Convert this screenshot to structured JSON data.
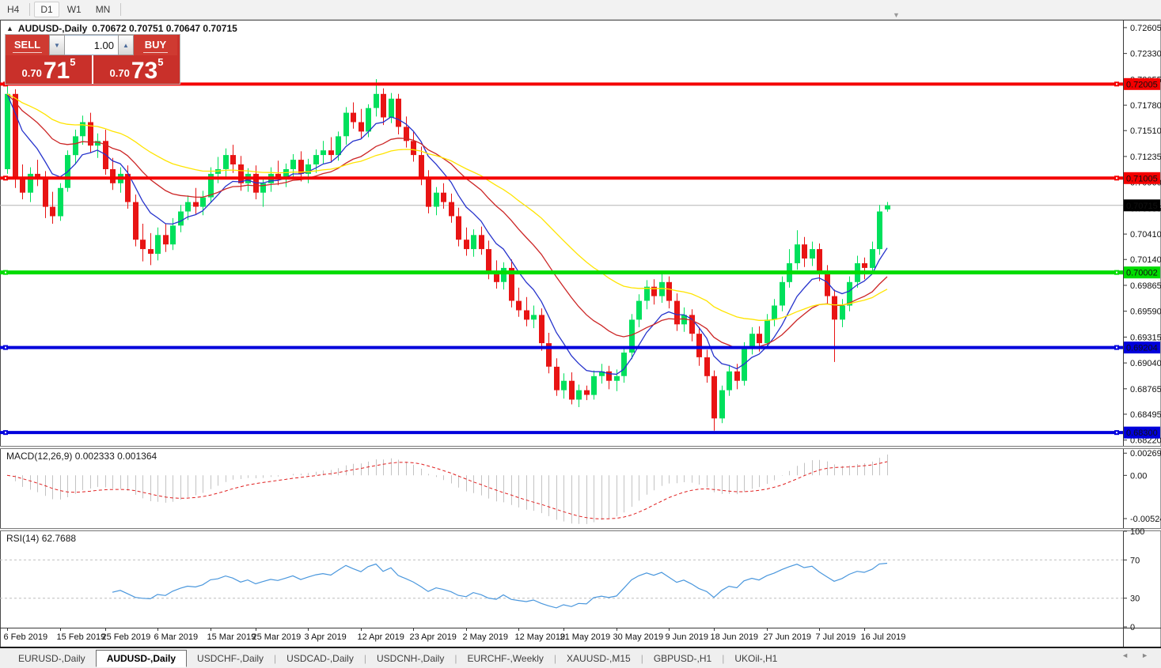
{
  "icons": {
    "overflow": "▼",
    "panel_toggle": "▲",
    "spin_up": "▲",
    "spin_down": "▼",
    "scroll_left": "◄",
    "scroll_right": "►"
  },
  "toolbar": {
    "timeframes": [
      {
        "label": "H4",
        "active": false
      },
      {
        "label": "D1",
        "active": true
      },
      {
        "label": "W1",
        "active": false
      },
      {
        "label": "MN",
        "active": false
      }
    ]
  },
  "chart_title": {
    "symbol": "AUDUSD-,Daily",
    "ohlc": "0.70672 0.70751 0.70647 0.70715"
  },
  "trade_panel": {
    "sell_label": "SELL",
    "buy_label": "BUY",
    "volume": "1.00",
    "sell_price": {
      "prefix": "0.70",
      "big": "71",
      "sup": "5"
    },
    "buy_price": {
      "prefix": "0.70",
      "big": "73",
      "sup": "5"
    }
  },
  "chart_data": {
    "type": "candlestick",
    "symbol": "AUDUSD",
    "timeframe": "Daily",
    "colors": {
      "candle_up": "#00e05c",
      "candle_down": "#e81414",
      "ma_fast": "#2633cc",
      "ma_mid": "#cc2626",
      "ma_slow": "#ffe400",
      "price_line": "#b4b4b4",
      "price_tag_bg": "#000000",
      "macd_hist": "#c3c3c3",
      "macd_signal": "#e01f1f",
      "rsi_line": "#4a97dd",
      "level_dash": "#bdbdbd"
    },
    "price_axis": {
      "range": {
        "min": 0.6815,
        "max": 0.7268
      },
      "ticks": [
        "0.72605",
        "0.72330",
        "0.72055",
        "0.71780",
        "0.71510",
        "0.71235",
        "0.70960",
        "0.70685",
        "0.70410",
        "0.70140",
        "0.69865",
        "0.69590",
        "0.69315",
        "0.69040",
        "0.68765",
        "0.68495",
        "0.68220"
      ]
    },
    "current_price": {
      "value": 0.70715,
      "label": "0.70715"
    },
    "hlines": [
      {
        "price": 0.72005,
        "label": "0.72005",
        "color": "#f40000",
        "text_color": "#ffffff",
        "thickness": 4
      },
      {
        "price": 0.71005,
        "label": "0.71005",
        "color": "#f40000",
        "text_color": "#ffffff",
        "thickness": 4
      },
      {
        "price": 0.70002,
        "label": "0.70002",
        "color": "#00dc00",
        "text_color": "#000000",
        "thickness": 5
      },
      {
        "price": 0.69204,
        "label": "0.69204",
        "color": "#0000dc",
        "text_color": "#ffffff",
        "thickness": 4
      },
      {
        "price": 0.683,
        "label": "0.68300",
        "color": "#0000dc",
        "text_color": "#ffffff",
        "thickness": 4
      }
    ],
    "moving_averages": [
      {
        "period": 8,
        "color": "#2633cc"
      },
      {
        "period": 20,
        "color": "#cc2626"
      },
      {
        "period": 40,
        "color": "#ffe400"
      }
    ],
    "price_scale_divisor": 100000,
    "candles": [
      [
        71100,
        72000,
        71050,
        71900
      ],
      [
        71900,
        71950,
        70900,
        71000
      ],
      [
        71000,
        71150,
        70780,
        70850
      ],
      [
        70850,
        71120,
        70750,
        71050
      ],
      [
        71050,
        71200,
        70920,
        71000
      ],
      [
        71000,
        71080,
        70580,
        70700
      ],
      [
        70700,
        70860,
        70520,
        70600
      ],
      [
        70600,
        70950,
        70550,
        70900
      ],
      [
        70900,
        71300,
        70860,
        71250
      ],
      [
        71250,
        71520,
        71150,
        71450
      ],
      [
        71450,
        71670,
        71360,
        71600
      ],
      [
        71600,
        71700,
        71280,
        71350
      ],
      [
        71350,
        71480,
        71220,
        71400
      ],
      [
        71400,
        71520,
        71040,
        71100
      ],
      [
        71100,
        71220,
        70880,
        70950
      ],
      [
        70950,
        71120,
        70850,
        71050
      ],
      [
        71050,
        71140,
        70680,
        70750
      ],
      [
        70750,
        70830,
        70280,
        70350
      ],
      [
        70350,
        70520,
        70120,
        70250
      ],
      [
        70250,
        70420,
        70080,
        70200
      ],
      [
        70200,
        70480,
        70130,
        70400
      ],
      [
        70400,
        70520,
        70220,
        70300
      ],
      [
        70300,
        70580,
        70240,
        70500
      ],
      [
        70500,
        70720,
        70430,
        70650
      ],
      [
        70650,
        70820,
        70560,
        70750
      ],
      [
        70750,
        70900,
        70620,
        70700
      ],
      [
        70700,
        70870,
        70610,
        70800
      ],
      [
        70800,
        71120,
        70740,
        71050
      ],
      [
        71050,
        71230,
        70950,
        71100
      ],
      [
        71100,
        71320,
        71010,
        71250
      ],
      [
        71250,
        71360,
        71060,
        71150
      ],
      [
        71150,
        71240,
        70870,
        70950
      ],
      [
        70950,
        71110,
        70860,
        71050
      ],
      [
        71050,
        71140,
        70780,
        70850
      ],
      [
        70850,
        71010,
        70700,
        70950
      ],
      [
        70950,
        71120,
        70860,
        71050
      ],
      [
        71050,
        71190,
        70930,
        71000
      ],
      [
        71000,
        71160,
        70910,
        71100
      ],
      [
        71100,
        71260,
        71010,
        71200
      ],
      [
        71200,
        71290,
        70970,
        71050
      ],
      [
        71050,
        71210,
        70950,
        71150
      ],
      [
        71150,
        71310,
        71060,
        71250
      ],
      [
        71250,
        71400,
        71160,
        71300
      ],
      [
        71300,
        71440,
        71170,
        71250
      ],
      [
        71250,
        71500,
        71190,
        71450
      ],
      [
        71450,
        71760,
        71360,
        71700
      ],
      [
        71700,
        71810,
        71530,
        71600
      ],
      [
        71600,
        71740,
        71430,
        71500
      ],
      [
        71500,
        71790,
        71440,
        71750
      ],
      [
        71750,
        72057,
        71660,
        71900
      ],
      [
        71900,
        71960,
        71570,
        71650
      ],
      [
        71650,
        71910,
        71590,
        71850
      ],
      [
        71850,
        71900,
        71470,
        71550
      ],
      [
        71550,
        71660,
        71330,
        71400
      ],
      [
        71400,
        71500,
        71180,
        71250
      ],
      [
        71250,
        71340,
        70930,
        71000
      ],
      [
        71000,
        71090,
        70630,
        70700
      ],
      [
        70700,
        70910,
        70610,
        70850
      ],
      [
        70850,
        70950,
        70680,
        70750
      ],
      [
        70750,
        70840,
        70530,
        70600
      ],
      [
        70600,
        70690,
        70280,
        70350
      ],
      [
        70350,
        70480,
        70180,
        70250
      ],
      [
        70250,
        70460,
        70170,
        70400
      ],
      [
        70400,
        70490,
        70190,
        70250
      ],
      [
        70250,
        70340,
        69930,
        70000
      ],
      [
        70000,
        70130,
        69830,
        69900
      ],
      [
        69900,
        70110,
        69820,
        70050
      ],
      [
        70050,
        70140,
        69630,
        69700
      ],
      [
        69700,
        69840,
        69530,
        69600
      ],
      [
        69600,
        69740,
        69430,
        69500
      ],
      [
        69500,
        69650,
        69410,
        69550
      ],
      [
        69550,
        69620,
        69170,
        69250
      ],
      [
        69250,
        69360,
        68930,
        69000
      ],
      [
        69000,
        69090,
        68690,
        68750
      ],
      [
        68750,
        68930,
        68660,
        68850
      ],
      [
        68850,
        68940,
        68600,
        68650
      ],
      [
        68650,
        68810,
        68570,
        68750
      ],
      [
        68750,
        68800,
        68645,
        68700
      ],
      [
        68700,
        68960,
        68650,
        68900
      ],
      [
        68900,
        69030,
        68820,
        68950
      ],
      [
        68950,
        69010,
        68760,
        68850
      ],
      [
        68850,
        68970,
        68740,
        68900
      ],
      [
        68900,
        69210,
        68830,
        69150
      ],
      [
        69150,
        69560,
        69080,
        69500
      ],
      [
        69500,
        69770,
        69420,
        69700
      ],
      [
        69700,
        69920,
        69610,
        69850
      ],
      [
        69850,
        69930,
        69660,
        69750
      ],
      [
        69750,
        69990,
        69680,
        69900
      ],
      [
        69900,
        69960,
        69620,
        69700
      ],
      [
        69700,
        69780,
        69380,
        69450
      ],
      [
        69450,
        69630,
        69370,
        69550
      ],
      [
        69550,
        69610,
        69270,
        69350
      ],
      [
        69350,
        69420,
        69010,
        69100
      ],
      [
        69100,
        69180,
        68830,
        68900
      ],
      [
        68900,
        68960,
        68320,
        68450
      ],
      [
        68450,
        68800,
        68400,
        68750
      ],
      [
        68750,
        69020,
        68690,
        68950
      ],
      [
        68950,
        69030,
        68760,
        68850
      ],
      [
        68850,
        69260,
        68800,
        69200
      ],
      [
        69200,
        69420,
        69130,
        69350
      ],
      [
        69350,
        69430,
        69160,
        69250
      ],
      [
        69250,
        69560,
        69190,
        69500
      ],
      [
        69500,
        69720,
        69430,
        69650
      ],
      [
        69650,
        69960,
        69590,
        69900
      ],
      [
        69900,
        70250,
        69840,
        70100
      ],
      [
        70100,
        70450,
        70030,
        70300
      ],
      [
        70300,
        70380,
        70060,
        70150
      ],
      [
        70150,
        70330,
        70070,
        70250
      ],
      [
        70250,
        70310,
        69910,
        70000
      ],
      [
        70000,
        70080,
        69670,
        69750
      ],
      [
        69750,
        69820,
        69050,
        69500
      ],
      [
        69500,
        69720,
        69420,
        69650
      ],
      [
        69650,
        69960,
        69590,
        69900
      ],
      [
        69900,
        70180,
        69840,
        70100
      ],
      [
        70100,
        70160,
        69930,
        70050
      ],
      [
        70050,
        70330,
        69990,
        70250
      ],
      [
        70250,
        70720,
        70190,
        70650
      ],
      [
        70672,
        70751,
        70647,
        70715
      ]
    ],
    "date_ticks": [
      {
        "label": "6 Feb 2019",
        "index": 0
      },
      {
        "label": "15 Feb 2019",
        "index": 7
      },
      {
        "label": "25 Feb 2019",
        "index": 13
      },
      {
        "label": "6 Mar 2019",
        "index": 20
      },
      {
        "label": "15 Mar 2019",
        "index": 27
      },
      {
        "label": "25 Mar 2019",
        "index": 33
      },
      {
        "label": "3 Apr 2019",
        "index": 40
      },
      {
        "label": "12 Apr 2019",
        "index": 47
      },
      {
        "label": "23 Apr 2019",
        "index": 54
      },
      {
        "label": "2 May 2019",
        "index": 61
      },
      {
        "label": "12 May 2019",
        "index": 68
      },
      {
        "label": "21 May 2019",
        "index": 74
      },
      {
        "label": "30 May 2019",
        "index": 81
      },
      {
        "label": "9 Jun 2019",
        "index": 88
      },
      {
        "label": "18 Jun 2019",
        "index": 94
      },
      {
        "label": "27 Jun 2019",
        "index": 101
      },
      {
        "label": "7 Jul 2019",
        "index": 108
      },
      {
        "label": "16 Jul 2019",
        "index": 114
      }
    ],
    "macd": {
      "label": "MACD(12,26,9)",
      "value_main": "0.002333",
      "value_signal": "0.001364",
      "fast": 12,
      "slow": 26,
      "signal": 9,
      "range": {
        "min": -0.0062,
        "max": 0.0031
      },
      "ticks": [
        {
          "label": "0.002694",
          "value": 0.002694
        },
        {
          "label": "0.00",
          "value": 0
        },
        {
          "label": "-0.005242",
          "value": -0.005242
        }
      ]
    },
    "rsi": {
      "label": "RSI(14)",
      "value": "62.7688",
      "period": 14,
      "levels": [
        70,
        30
      ],
      "ticks": [
        100,
        70,
        30,
        0
      ]
    }
  },
  "tabs": [
    {
      "label": "EURUSD-,Daily",
      "active": false
    },
    {
      "label": "AUDUSD-,Daily",
      "active": true
    },
    {
      "label": "USDCHF-,Daily",
      "active": false
    },
    {
      "label": "USDCAD-,Daily",
      "active": false
    },
    {
      "label": "USDCNH-,Daily",
      "active": false
    },
    {
      "label": "EURCHF-,Weekly",
      "active": false
    },
    {
      "label": "XAUUSD-,M15",
      "active": false
    },
    {
      "label": "GBPUSD-,H1",
      "active": false
    },
    {
      "label": "UKOil-,H1",
      "active": false
    }
  ]
}
